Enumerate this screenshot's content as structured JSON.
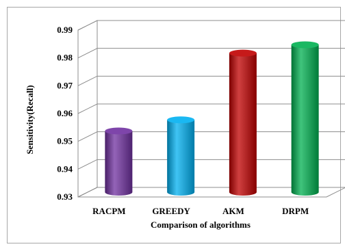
{
  "chart_data": {
    "type": "bar",
    "title": "",
    "xlabel": "Comparison of algorithms",
    "ylabel": "Sensitivity(Recall)",
    "ylim": [
      0.93,
      0.99
    ],
    "yticks": [
      "0.93",
      "0.94",
      "0.95",
      "0.96",
      "0.97",
      "0.98",
      "0.99"
    ],
    "ytick_values": [
      0.93,
      0.94,
      0.95,
      0.96,
      0.97,
      0.98,
      0.99
    ],
    "grid": true,
    "legend": "none",
    "style": "3d-cylinder",
    "categories": [
      "RACPM",
      "GREEDY",
      "AKM",
      "DRPM"
    ],
    "values": [
      0.952,
      0.956,
      0.98,
      0.983
    ],
    "colors": [
      "#7030a0",
      "#00b0f0",
      "#c00000",
      "#00b050"
    ]
  }
}
